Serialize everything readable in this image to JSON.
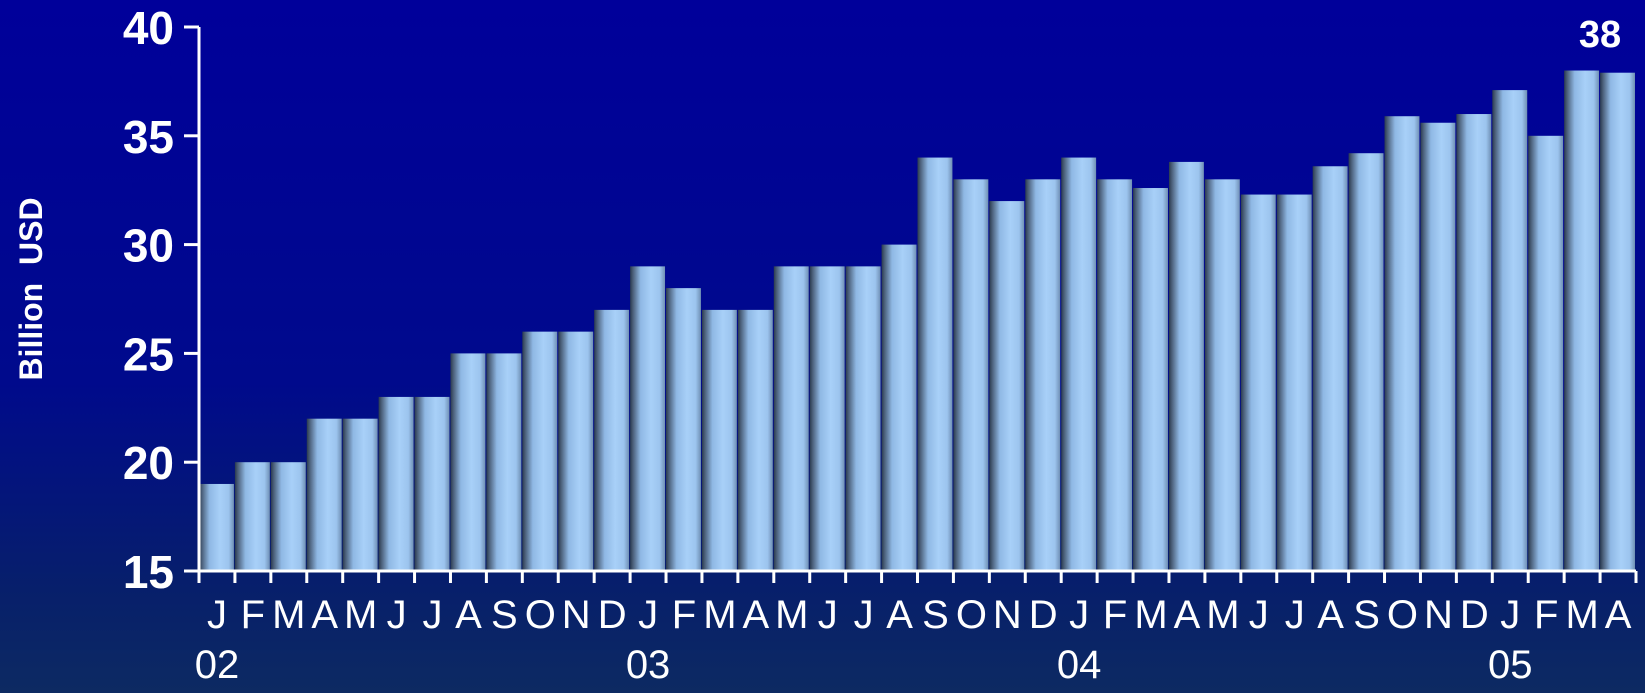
{
  "chart_data": {
    "type": "bar",
    "ylabel": "Billion  USD",
    "ylim": [
      15,
      40
    ],
    "yticks": [
      15,
      20,
      25,
      30,
      35,
      40
    ],
    "categories": [
      "J",
      "F",
      "M",
      "A",
      "M",
      "J",
      "J",
      "A",
      "S",
      "O",
      "N",
      "D",
      "J",
      "F",
      "M",
      "A",
      "M",
      "J",
      "J",
      "A",
      "S",
      "O",
      "N",
      "D",
      "J",
      "F",
      "M",
      "A",
      "M",
      "J",
      "J",
      "A",
      "S",
      "O",
      "N",
      "D",
      "J",
      "F",
      "M",
      "A"
    ],
    "year_labels": [
      {
        "label": "02",
        "index": 0
      },
      {
        "label": "03",
        "index": 12
      },
      {
        "label": "04",
        "index": 24
      },
      {
        "label": "05",
        "index": 36
      }
    ],
    "values": [
      19,
      20,
      20,
      22,
      22,
      23,
      23,
      25,
      25,
      26,
      26,
      27,
      29,
      28,
      27,
      27,
      29,
      29,
      29,
      30,
      34,
      33,
      32,
      33,
      34,
      33,
      32.6,
      33.8,
      33,
      32.3,
      32.3,
      33.6,
      34.2,
      35.9,
      35.6,
      36,
      37.1,
      35,
      38,
      37.9
    ],
    "annotations": [
      {
        "text": "38",
        "index": 38
      }
    ],
    "colors": {
      "bar_light": "#a8d0f8",
      "bar_dark": "#2a3a4e",
      "axis": "#ffffff",
      "text": "#ffffff"
    },
    "grid": false
  }
}
